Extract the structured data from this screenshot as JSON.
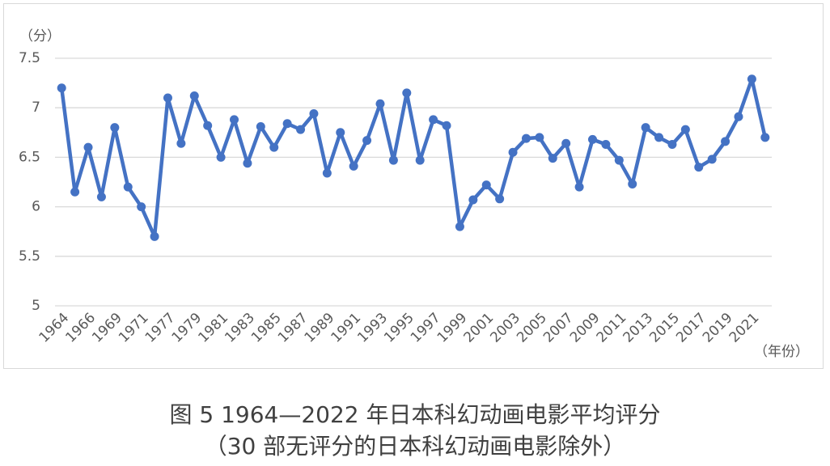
{
  "chart_data": {
    "type": "line",
    "ylabel": "（分）",
    "xlabel": "（年份）",
    "caption": [
      "图 5 1964—2022 年日本科幻动画电影平均评分",
      "（30 部无评分的日本科幻动画电影除外）"
    ],
    "categories": [
      "1964",
      null,
      "1966",
      null,
      "1969",
      null,
      "1971",
      null,
      "1977",
      null,
      "1979",
      null,
      "1981",
      null,
      "1983",
      null,
      "1985",
      null,
      "1987",
      null,
      "1989",
      null,
      "1991",
      null,
      "1993",
      null,
      "1995",
      null,
      "1997",
      null,
      "1999",
      null,
      "2001",
      null,
      "2003",
      null,
      "2005",
      null,
      "2007",
      null,
      "2009",
      null,
      "2011",
      null,
      "2013",
      null,
      "2015",
      null,
      "2017",
      null,
      "2019",
      null,
      "2021",
      null
    ],
    "series": [
      {
        "name": "平均评分",
        "color": "#4472c4",
        "values": [
          7.2,
          6.15,
          6.6,
          6.1,
          6.8,
          6.2,
          6.0,
          5.7,
          7.1,
          6.64,
          7.12,
          6.82,
          6.5,
          6.88,
          6.44,
          6.81,
          6.6,
          6.84,
          6.78,
          6.94,
          6.34,
          6.75,
          6.41,
          6.67,
          7.04,
          6.47,
          7.15,
          6.47,
          6.88,
          6.82,
          5.8,
          6.07,
          6.22,
          6.08,
          6.55,
          6.69,
          6.7,
          6.49,
          6.64,
          6.2,
          6.68,
          6.63,
          6.47,
          6.23,
          6.8,
          6.7,
          6.63,
          6.78,
          6.4,
          6.48,
          6.66,
          6.91,
          7.29,
          6.7
        ]
      }
    ],
    "ylim": [
      5,
      7.5
    ],
    "yticks": [
      5,
      5.5,
      6,
      6.5,
      7,
      7.5
    ],
    "grid": true
  }
}
